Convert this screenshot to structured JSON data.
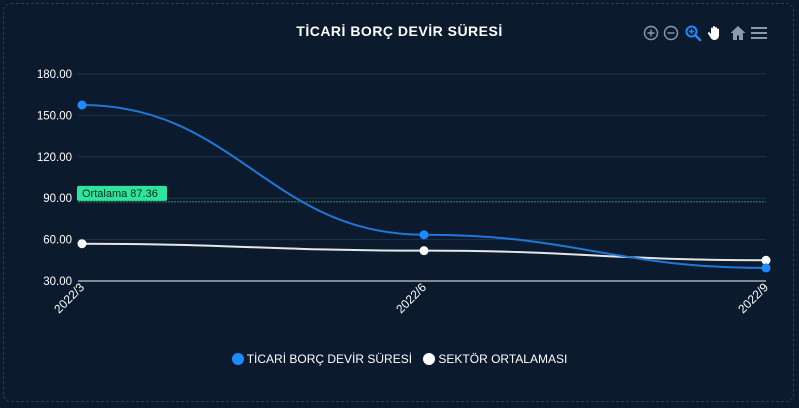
{
  "chart_data": {
    "type": "line",
    "title": "TİCARİ BORÇ DEVİR SÜRESİ",
    "categories": [
      "2022/3",
      "2022/6",
      "2022/9"
    ],
    "series": [
      {
        "name": "TİCARİ BORÇ DEVİR SÜRESİ",
        "values": [
          157.5,
          63.5,
          39.5
        ],
        "color": "#1a8cff",
        "line_color": "#1e78d6"
      },
      {
        "name": "SEKTÖR ORTALAMASI",
        "values": [
          57.0,
          52.0,
          45.0
        ],
        "color": "#ffffff",
        "line_color": "#e6e6e6"
      }
    ],
    "yticks": [
      "180.00",
      "150.00",
      "120.00",
      "90.00",
      "60.00",
      "30.00"
    ],
    "ylim": [
      30,
      180
    ],
    "grid": true,
    "annotation": {
      "label": "Ortalama 87.36",
      "value": 87.36,
      "color": "#2ee59d"
    },
    "legend_position": "bottom-center"
  },
  "toolbar": {
    "icons": [
      "zoom-in-icon",
      "zoom-out-icon",
      "magnifier-icon",
      "pan-hand-icon",
      "home-icon",
      "menu-icon"
    ]
  }
}
